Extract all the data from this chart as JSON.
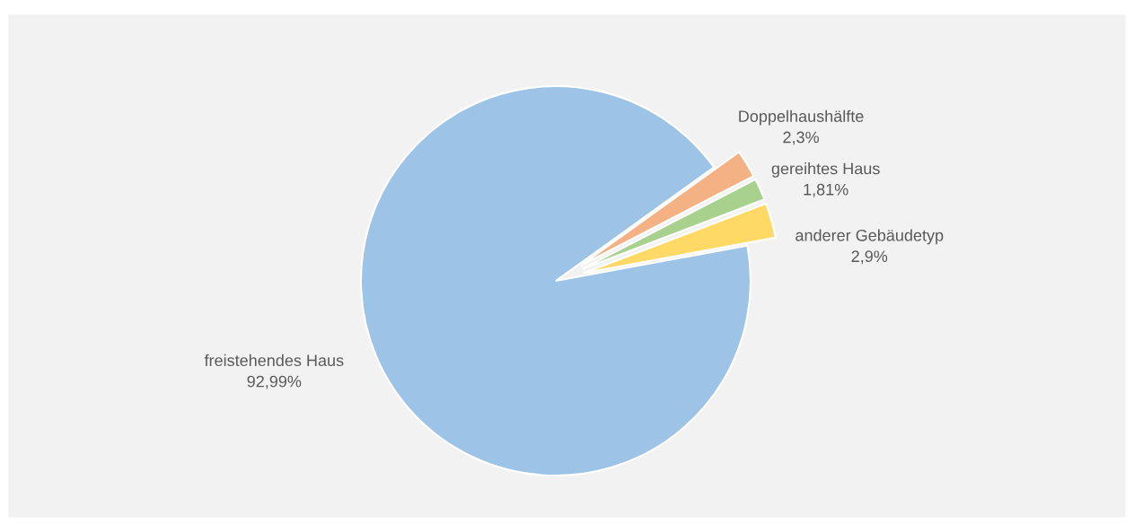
{
  "chart_data": {
    "type": "pie",
    "categories": [
      "freistehendes Haus",
      "Doppelhaushälfte",
      "gereihtes Haus",
      "anderer Gebäudetyp"
    ],
    "values": [
      92.99,
      2.3,
      1.81,
      2.9
    ],
    "colors": [
      "#9dc3e6",
      "#f4b183",
      "#a9d18e",
      "#ffd966"
    ],
    "value_labels": [
      "92,99%",
      "2,3%",
      "1,81%",
      "2,9%"
    ]
  }
}
